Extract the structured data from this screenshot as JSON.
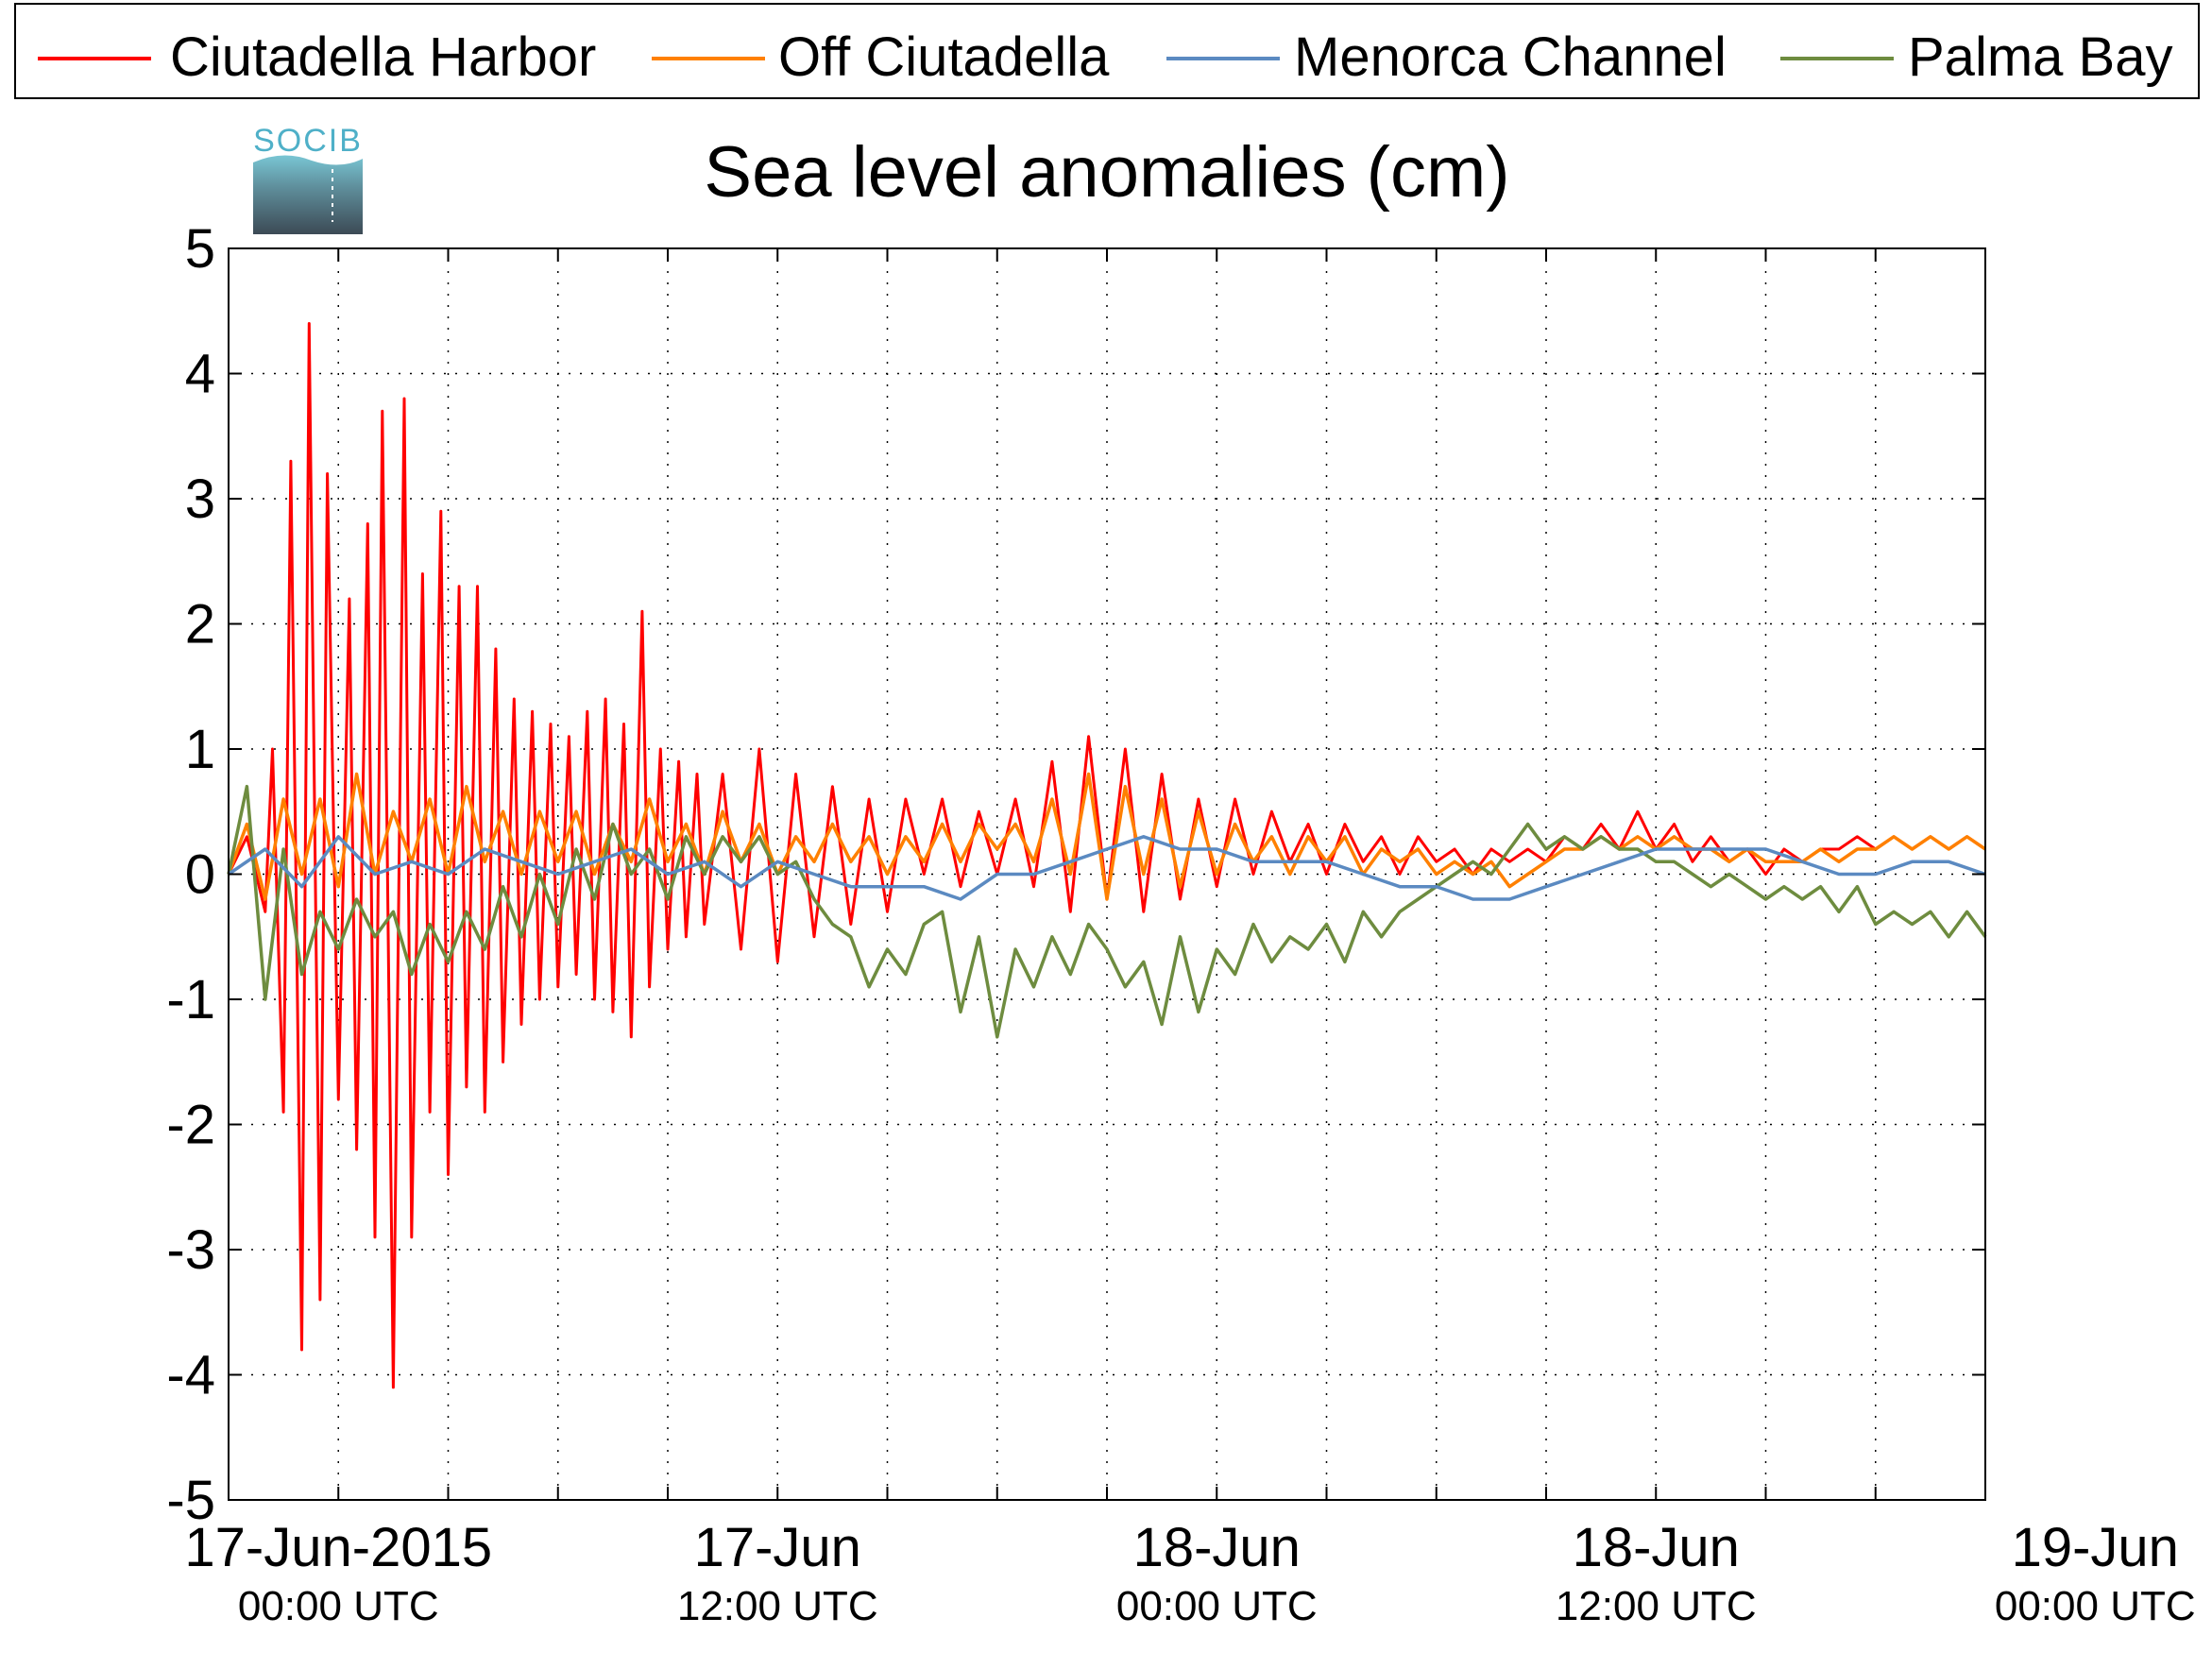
{
  "logo": {
    "text": "SOCIB"
  },
  "chart_data": {
    "type": "line",
    "title": "Sea level anomalies (cm)",
    "xlabel": "",
    "ylabel": "",
    "ylim": [
      -5,
      5
    ],
    "yticks": [
      -5,
      -4,
      -3,
      -2,
      -1,
      0,
      1,
      2,
      3,
      4,
      5
    ],
    "xlim_hours": [
      -3,
      45
    ],
    "x_tick_labels": [
      {
        "hour": 0,
        "date": "17-Jun-2015",
        "time": "00:00 UTC"
      },
      {
        "hour": 12,
        "date": "17-Jun",
        "time": "12:00 UTC"
      },
      {
        "hour": 24,
        "date": "18-Jun",
        "time": "00:00 UTC"
      },
      {
        "hour": 36,
        "date": "18-Jun",
        "time": "12:00 UTC"
      },
      {
        "hour": 48,
        "date": "19-Jun",
        "time": "00:00 UTC"
      }
    ],
    "grid": true,
    "legend_position": "top",
    "series": [
      {
        "name": "Ciutadella Harbor",
        "color": "#ff0000",
        "x": [
          -3,
          -2.5,
          -2,
          -1.8,
          -1.5,
          -1.3,
          -1,
          -0.8,
          -0.5,
          -0.3,
          0,
          0.3,
          0.5,
          0.8,
          1,
          1.2,
          1.5,
          1.8,
          2,
          2.3,
          2.5,
          2.8,
          3,
          3.3,
          3.5,
          3.8,
          4,
          4.3,
          4.5,
          4.8,
          5,
          5.3,
          5.5,
          5.8,
          6,
          6.3,
          6.5,
          6.8,
          7,
          7.3,
          7.5,
          7.8,
          8,
          8.3,
          8.5,
          8.8,
          9,
          9.3,
          9.5,
          9.8,
          10,
          10.5,
          11,
          11.5,
          12,
          12.5,
          13,
          13.5,
          14,
          14.5,
          15,
          15.5,
          16,
          16.5,
          17,
          17.5,
          18,
          18.5,
          19,
          19.5,
          20,
          20.5,
          21,
          21.5,
          22,
          22.5,
          23,
          23.5,
          24,
          24.5,
          25,
          25.5,
          26,
          26.5,
          27,
          27.5,
          28,
          28.5,
          29,
          29.5,
          30,
          30.5,
          31,
          31.5,
          32,
          32.5,
          33,
          33.5,
          34,
          34.5,
          35,
          35.5,
          36,
          36.5,
          37,
          37.5,
          38,
          38.5,
          39,
          39.5,
          40,
          40.5,
          41,
          41.5,
          42,
          42.5,
          43,
          43.5,
          44,
          44.5,
          45
        ],
        "values": [
          0,
          0.3,
          -0.3,
          1.0,
          -1.9,
          3.3,
          -3.8,
          4.4,
          -3.4,
          3.2,
          -1.8,
          2.2,
          -2.2,
          2.8,
          -2.9,
          3.7,
          -4.1,
          3.8,
          -2.9,
          2.4,
          -1.9,
          2.9,
          -2.4,
          2.3,
          -1.7,
          2.3,
          -1.9,
          1.8,
          -1.5,
          1.4,
          -1.2,
          1.3,
          -1.0,
          1.2,
          -0.9,
          1.1,
          -0.8,
          1.3,
          -1.0,
          1.4,
          -1.1,
          1.2,
          -1.3,
          2.1,
          -0.9,
          1.0,
          -0.6,
          0.9,
          -0.5,
          0.8,
          -0.4,
          0.8,
          -0.6,
          1.0,
          -0.7,
          0.8,
          -0.5,
          0.7,
          -0.4,
          0.6,
          -0.3,
          0.6,
          0.0,
          0.6,
          -0.1,
          0.5,
          0.0,
          0.6,
          -0.1,
          0.9,
          -0.3,
          1.1,
          -0.2,
          1.0,
          -0.3,
          0.8,
          -0.2,
          0.6,
          -0.1,
          0.6,
          0.0,
          0.5,
          0.1,
          0.4,
          0.0,
          0.4,
          0.1,
          0.3,
          0.0,
          0.3,
          0.1,
          0.2,
          0.0,
          0.2,
          0.1,
          0.2,
          0.1,
          0.3,
          0.2,
          0.4,
          0.2,
          0.5,
          0.2,
          0.4,
          0.1,
          0.3,
          0.1,
          0.2,
          0.0,
          0.2,
          0.1,
          0.2,
          0.2,
          0.3,
          0.2,
          0.3,
          0.2,
          0.3,
          0.2,
          0.3,
          0.2
        ]
      },
      {
        "name": "Off Ciutadella",
        "color": "#ff8000",
        "x": [
          -3,
          -2.5,
          -2,
          -1.5,
          -1,
          -0.5,
          0,
          0.5,
          1,
          1.5,
          2,
          2.5,
          3,
          3.5,
          4,
          4.5,
          5,
          5.5,
          6,
          6.5,
          7,
          7.5,
          8,
          8.5,
          9,
          9.5,
          10,
          10.5,
          11,
          11.5,
          12,
          12.5,
          13,
          13.5,
          14,
          14.5,
          15,
          15.5,
          16,
          16.5,
          17,
          17.5,
          18,
          18.5,
          19,
          19.5,
          20,
          20.5,
          21,
          21.5,
          22,
          22.5,
          23,
          23.5,
          24,
          24.5,
          25,
          25.5,
          26,
          26.5,
          27,
          27.5,
          28,
          28.5,
          29,
          29.5,
          30,
          30.5,
          31,
          31.5,
          32,
          32.5,
          33,
          33.5,
          34,
          34.5,
          35,
          35.5,
          36,
          36.5,
          37,
          37.5,
          38,
          38.5,
          39,
          39.5,
          40,
          40.5,
          41,
          41.5,
          42,
          42.5,
          43,
          43.5,
          44,
          44.5,
          45
        ],
        "values": [
          0,
          0.4,
          -0.2,
          0.6,
          0.0,
          0.6,
          -0.1,
          0.8,
          0.0,
          0.5,
          0.1,
          0.6,
          0.0,
          0.7,
          0.1,
          0.5,
          0.0,
          0.5,
          0.1,
          0.5,
          0.0,
          0.4,
          0.1,
          0.6,
          0.1,
          0.4,
          0.0,
          0.5,
          0.1,
          0.4,
          0.0,
          0.3,
          0.1,
          0.4,
          0.1,
          0.3,
          0.0,
          0.3,
          0.1,
          0.4,
          0.1,
          0.4,
          0.2,
          0.4,
          0.1,
          0.6,
          0.0,
          0.8,
          -0.2,
          0.7,
          0.0,
          0.6,
          -0.1,
          0.5,
          0.0,
          0.4,
          0.1,
          0.3,
          0.0,
          0.3,
          0.1,
          0.3,
          0.0,
          0.2,
          0.1,
          0.2,
          0.0,
          0.1,
          0.0,
          0.1,
          -0.1,
          0.0,
          0.1,
          0.2,
          0.2,
          0.3,
          0.2,
          0.3,
          0.2,
          0.3,
          0.2,
          0.2,
          0.1,
          0.2,
          0.1,
          0.1,
          0.1,
          0.2,
          0.1,
          0.2,
          0.2,
          0.3,
          0.2,
          0.3,
          0.2,
          0.3,
          0.2
        ]
      },
      {
        "name": "Menorca Channel",
        "color": "#5b8ac1",
        "x": [
          -3,
          -2,
          -1,
          0,
          1,
          2,
          3,
          4,
          5,
          6,
          7,
          8,
          9,
          10,
          11,
          12,
          13,
          14,
          15,
          16,
          17,
          18,
          19,
          20,
          21,
          22,
          23,
          24,
          25,
          26,
          27,
          28,
          29,
          30,
          31,
          32,
          33,
          34,
          35,
          36,
          37,
          38,
          39,
          40,
          41,
          42,
          43,
          44,
          45
        ],
        "values": [
          0,
          0.2,
          -0.1,
          0.3,
          0.0,
          0.1,
          0.0,
          0.2,
          0.1,
          0.0,
          0.1,
          0.2,
          0.0,
          0.1,
          -0.1,
          0.1,
          0.0,
          -0.1,
          -0.1,
          -0.1,
          -0.2,
          0.0,
          0.0,
          0.1,
          0.2,
          0.3,
          0.2,
          0.2,
          0.1,
          0.1,
          0.1,
          0.0,
          -0.1,
          -0.1,
          -0.2,
          -0.2,
          -0.1,
          0.0,
          0.1,
          0.2,
          0.2,
          0.2,
          0.2,
          0.1,
          0.0,
          0.0,
          0.1,
          0.1,
          0.0
        ]
      },
      {
        "name": "Palma Bay",
        "color": "#6e8c3f",
        "x": [
          -3,
          -2.5,
          -2,
          -1.5,
          -1,
          -0.5,
          0,
          0.5,
          1,
          1.5,
          2,
          2.5,
          3,
          3.5,
          4,
          4.5,
          5,
          5.5,
          6,
          6.5,
          7,
          7.5,
          8,
          8.5,
          9,
          9.5,
          10,
          10.5,
          11,
          11.5,
          12,
          12.5,
          13,
          13.5,
          14,
          14.5,
          15,
          15.5,
          16,
          16.5,
          17,
          17.5,
          18,
          18.5,
          19,
          19.5,
          20,
          20.5,
          21,
          21.5,
          22,
          22.5,
          23,
          23.5,
          24,
          24.5,
          25,
          25.5,
          26,
          26.5,
          27,
          27.5,
          28,
          28.5,
          29,
          29.5,
          30,
          30.5,
          31,
          31.5,
          32,
          32.5,
          33,
          33.5,
          34,
          34.5,
          35,
          35.5,
          36,
          36.5,
          37,
          37.5,
          38,
          38.5,
          39,
          39.5,
          40,
          40.5,
          41,
          41.5,
          42,
          42.5,
          43,
          43.5,
          44,
          44.5,
          45
        ],
        "values": [
          0,
          0.7,
          -1.0,
          0.2,
          -0.8,
          -0.3,
          -0.6,
          -0.2,
          -0.5,
          -0.3,
          -0.8,
          -0.4,
          -0.7,
          -0.3,
          -0.6,
          -0.1,
          -0.5,
          0.0,
          -0.4,
          0.2,
          -0.2,
          0.4,
          0.0,
          0.2,
          -0.2,
          0.3,
          0.0,
          0.3,
          0.1,
          0.3,
          0.0,
          0.1,
          -0.2,
          -0.4,
          -0.5,
          -0.9,
          -0.6,
          -0.8,
          -0.4,
          -0.3,
          -1.1,
          -0.5,
          -1.3,
          -0.6,
          -0.9,
          -0.5,
          -0.8,
          -0.4,
          -0.6,
          -0.9,
          -0.7,
          -1.2,
          -0.5,
          -1.1,
          -0.6,
          -0.8,
          -0.4,
          -0.7,
          -0.5,
          -0.6,
          -0.4,
          -0.7,
          -0.3,
          -0.5,
          -0.3,
          -0.2,
          -0.1,
          0.0,
          0.1,
          0.0,
          0.2,
          0.4,
          0.2,
          0.3,
          0.2,
          0.3,
          0.2,
          0.2,
          0.1,
          0.1,
          0.0,
          -0.1,
          0.0,
          -0.1,
          -0.2,
          -0.1,
          -0.2,
          -0.1,
          -0.3,
          -0.1,
          -0.4,
          -0.3,
          -0.4,
          -0.3,
          -0.5,
          -0.3,
          -0.5
        ]
      }
    ]
  }
}
